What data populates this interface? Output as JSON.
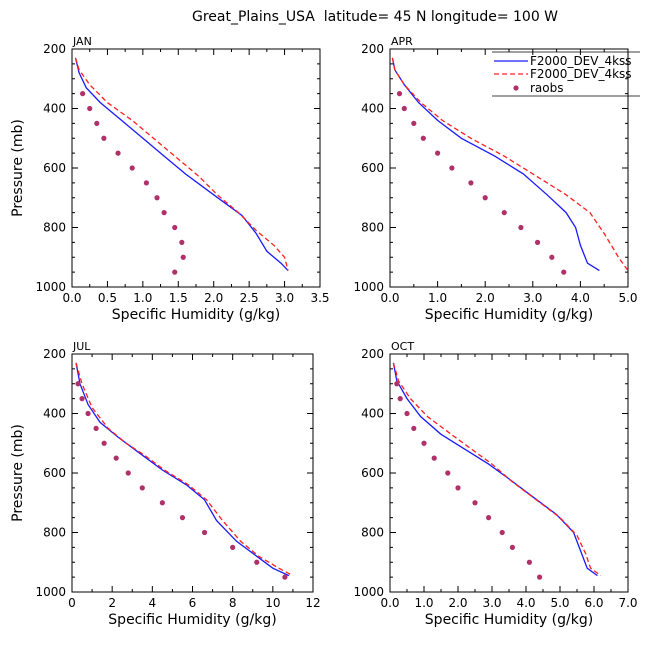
{
  "title": "Great_Plains_USA  latitude= 45 N longitude= 100 W",
  "legend": {
    "entries": [
      {
        "label": "F2000_DEV_4kss",
        "color": "#1a1aff",
        "style": "solid"
      },
      {
        "label": "F2000_DEV_4kss",
        "color": "#ff2020",
        "style": "dashed"
      },
      {
        "label": "raobs",
        "color": "#b0306a",
        "style": "dots"
      }
    ],
    "placement": "top-right of APR panel"
  },
  "chart_data": [
    {
      "type": "line",
      "panel": "JAN",
      "title": "JAN",
      "xlabel": "Specific Humidity (g/kg)",
      "ylabel": "Pressure (mb)",
      "xlim": [
        0,
        3.5
      ],
      "ylim": [
        1000,
        200
      ],
      "xticks": [
        "0.0",
        "0.5",
        "1.0",
        "1.5",
        "2.0",
        "2.5",
        "3.0",
        "3.5"
      ],
      "yticks": [
        "200",
        "400",
        "600",
        "800",
        "1000"
      ],
      "grid": false,
      "series": [
        {
          "name": "F2000_DEV_4kss",
          "style": "solid",
          "color": "#1a1aff",
          "points": [
            [
              0.05,
              230
            ],
            [
              0.1,
              280
            ],
            [
              0.2,
              330
            ],
            [
              0.4,
              380
            ],
            [
              0.7,
              440
            ],
            [
              1.0,
              500
            ],
            [
              1.3,
              560
            ],
            [
              1.6,
              620
            ],
            [
              2.0,
              690
            ],
            [
              2.4,
              760
            ],
            [
              2.6,
              820
            ],
            [
              2.75,
              880
            ],
            [
              2.95,
              920
            ],
            [
              3.05,
              945
            ]
          ]
        },
        {
          "name": "F2000_DEV_4kss",
          "style": "dashed",
          "color": "#ff2020",
          "points": [
            [
              0.05,
              230
            ],
            [
              0.1,
              270
            ],
            [
              0.25,
              320
            ],
            [
              0.5,
              380
            ],
            [
              0.85,
              440
            ],
            [
              1.2,
              510
            ],
            [
              1.5,
              570
            ],
            [
              1.8,
              630
            ],
            [
              2.05,
              690
            ],
            [
              2.35,
              750
            ],
            [
              2.6,
              810
            ],
            [
              2.85,
              860
            ],
            [
              3.0,
              900
            ],
            [
              3.05,
              945
            ]
          ]
        },
        {
          "name": "raobs",
          "style": "dots",
          "color": "#b0306a",
          "points": [
            [
              0.15,
              350
            ],
            [
              0.25,
              400
            ],
            [
              0.35,
              450
            ],
            [
              0.45,
              500
            ],
            [
              0.65,
              550
            ],
            [
              0.85,
              600
            ],
            [
              1.05,
              650
            ],
            [
              1.2,
              700
            ],
            [
              1.3,
              750
            ],
            [
              1.45,
              800
            ],
            [
              1.55,
              850
            ],
            [
              1.57,
              900
            ],
            [
              1.45,
              950
            ]
          ]
        }
      ]
    },
    {
      "type": "line",
      "panel": "APR",
      "title": "APR",
      "xlabel": "Specific Humidity (g/kg)",
      "ylabel": "",
      "xlim": [
        0,
        5
      ],
      "ylim": [
        1000,
        200
      ],
      "xticks": [
        "0.0",
        "1.0",
        "2.0",
        "3.0",
        "4.0",
        "5.0"
      ],
      "yticks": [
        "200",
        "400",
        "600",
        "800",
        "1000"
      ],
      "grid": false,
      "series": [
        {
          "name": "F2000_DEV_4kss",
          "style": "solid",
          "color": "#1a1aff",
          "points": [
            [
              0.05,
              230
            ],
            [
              0.1,
              270
            ],
            [
              0.3,
              320
            ],
            [
              0.6,
              380
            ],
            [
              1.0,
              440
            ],
            [
              1.5,
              500
            ],
            [
              2.2,
              560
            ],
            [
              2.8,
              620
            ],
            [
              3.3,
              690
            ],
            [
              3.7,
              750
            ],
            [
              3.9,
              800
            ],
            [
              4.0,
              860
            ],
            [
              4.15,
              920
            ],
            [
              4.4,
              945
            ]
          ]
        },
        {
          "name": "F2000_DEV_4kss",
          "style": "dashed",
          "color": "#ff2020",
          "points": [
            [
              0.05,
              230
            ],
            [
              0.1,
              270
            ],
            [
              0.3,
              320
            ],
            [
              0.65,
              380
            ],
            [
              1.1,
              440
            ],
            [
              1.7,
              500
            ],
            [
              2.4,
              560
            ],
            [
              3.1,
              630
            ],
            [
              3.7,
              690
            ],
            [
              4.2,
              750
            ],
            [
              4.5,
              820
            ],
            [
              4.8,
              900
            ],
            [
              5.0,
              945
            ]
          ]
        },
        {
          "name": "raobs",
          "style": "dots",
          "color": "#b0306a",
          "points": [
            [
              0.2,
              350
            ],
            [
              0.3,
              400
            ],
            [
              0.5,
              450
            ],
            [
              0.7,
              500
            ],
            [
              1.0,
              550
            ],
            [
              1.3,
              600
            ],
            [
              1.7,
              650
            ],
            [
              2.0,
              700
            ],
            [
              2.4,
              750
            ],
            [
              2.75,
              800
            ],
            [
              3.1,
              850
            ],
            [
              3.4,
              900
            ],
            [
              3.65,
              950
            ]
          ]
        }
      ]
    },
    {
      "type": "line",
      "panel": "JUL",
      "title": "JUL",
      "xlabel": "Specific Humidity (g/kg)",
      "ylabel": "Pressure (mb)",
      "xlim": [
        0,
        12
      ],
      "ylim": [
        1000,
        200
      ],
      "xticks": [
        "0",
        "2",
        "4",
        "6",
        "8",
        "10",
        "12"
      ],
      "yticks": [
        "200",
        "400",
        "600",
        "800",
        "1000"
      ],
      "grid": false,
      "series": [
        {
          "name": "F2000_DEV_4kss",
          "style": "solid",
          "color": "#1a1aff",
          "points": [
            [
              0.2,
              230
            ],
            [
              0.4,
              300
            ],
            [
              0.8,
              370
            ],
            [
              1.4,
              430
            ],
            [
              2.3,
              480
            ],
            [
              3.3,
              530
            ],
            [
              4.5,
              590
            ],
            [
              5.7,
              640
            ],
            [
              6.6,
              690
            ],
            [
              7.2,
              760
            ],
            [
              8.2,
              830
            ],
            [
              9.2,
              880
            ],
            [
              10.0,
              920
            ],
            [
              10.8,
              945
            ]
          ]
        },
        {
          "name": "F2000_DEV_4kss",
          "style": "dashed",
          "color": "#ff2020",
          "points": [
            [
              0.2,
              230
            ],
            [
              0.5,
              300
            ],
            [
              1.0,
              380
            ],
            [
              1.8,
              450
            ],
            [
              2.7,
              500
            ],
            [
              3.6,
              540
            ],
            [
              4.6,
              590
            ],
            [
              5.8,
              640
            ],
            [
              6.7,
              690
            ],
            [
              7.5,
              760
            ],
            [
              8.4,
              830
            ],
            [
              9.3,
              880
            ],
            [
              10.3,
              920
            ],
            [
              11.0,
              945
            ]
          ]
        },
        {
          "name": "raobs",
          "style": "dots",
          "color": "#b0306a",
          "points": [
            [
              0.3,
              300
            ],
            [
              0.5,
              350
            ],
            [
              0.8,
              400
            ],
            [
              1.2,
              450
            ],
            [
              1.6,
              500
            ],
            [
              2.2,
              550
            ],
            [
              2.8,
              600
            ],
            [
              3.5,
              650
            ],
            [
              4.5,
              700
            ],
            [
              5.5,
              750
            ],
            [
              6.6,
              800
            ],
            [
              8.0,
              850
            ],
            [
              9.2,
              900
            ],
            [
              10.6,
              950
            ]
          ]
        }
      ]
    },
    {
      "type": "line",
      "panel": "OCT",
      "title": "OCT",
      "xlabel": "Specific Humidity (g/kg)",
      "ylabel": "",
      "xlim": [
        0,
        7
      ],
      "ylim": [
        1000,
        200
      ],
      "xticks": [
        "0.0",
        "1.0",
        "2.0",
        "3.0",
        "4.0",
        "5.0",
        "6.0",
        "7.0"
      ],
      "yticks": [
        "200",
        "400",
        "600",
        "800",
        "1000"
      ],
      "grid": false,
      "series": [
        {
          "name": "F2000_DEV_4kss",
          "style": "solid",
          "color": "#1a1aff",
          "points": [
            [
              0.1,
              230
            ],
            [
              0.2,
              290
            ],
            [
              0.5,
              350
            ],
            [
              0.9,
              410
            ],
            [
              1.5,
              470
            ],
            [
              2.2,
              520
            ],
            [
              2.9,
              570
            ],
            [
              3.5,
              620
            ],
            [
              4.2,
              680
            ],
            [
              4.9,
              740
            ],
            [
              5.4,
              800
            ],
            [
              5.6,
              860
            ],
            [
              5.8,
              920
            ],
            [
              6.1,
              945
            ]
          ]
        },
        {
          "name": "F2000_DEV_4kss",
          "style": "dashed",
          "color": "#ff2020",
          "points": [
            [
              0.1,
              230
            ],
            [
              0.25,
              290
            ],
            [
              0.6,
              350
            ],
            [
              1.1,
              410
            ],
            [
              1.8,
              470
            ],
            [
              2.4,
              520
            ],
            [
              3.0,
              570
            ],
            [
              3.6,
              630
            ],
            [
              4.3,
              690
            ],
            [
              5.0,
              750
            ],
            [
              5.5,
              810
            ],
            [
              5.75,
              870
            ],
            [
              5.9,
              920
            ],
            [
              6.2,
              945
            ]
          ]
        },
        {
          "name": "raobs",
          "style": "dots",
          "color": "#b0306a",
          "points": [
            [
              0.2,
              300
            ],
            [
              0.3,
              350
            ],
            [
              0.5,
              400
            ],
            [
              0.7,
              450
            ],
            [
              1.0,
              500
            ],
            [
              1.3,
              550
            ],
            [
              1.7,
              600
            ],
            [
              2.0,
              650
            ],
            [
              2.5,
              700
            ],
            [
              2.9,
              750
            ],
            [
              3.3,
              800
            ],
            [
              3.6,
              850
            ],
            [
              4.1,
              900
            ],
            [
              4.4,
              950
            ]
          ]
        }
      ]
    }
  ]
}
